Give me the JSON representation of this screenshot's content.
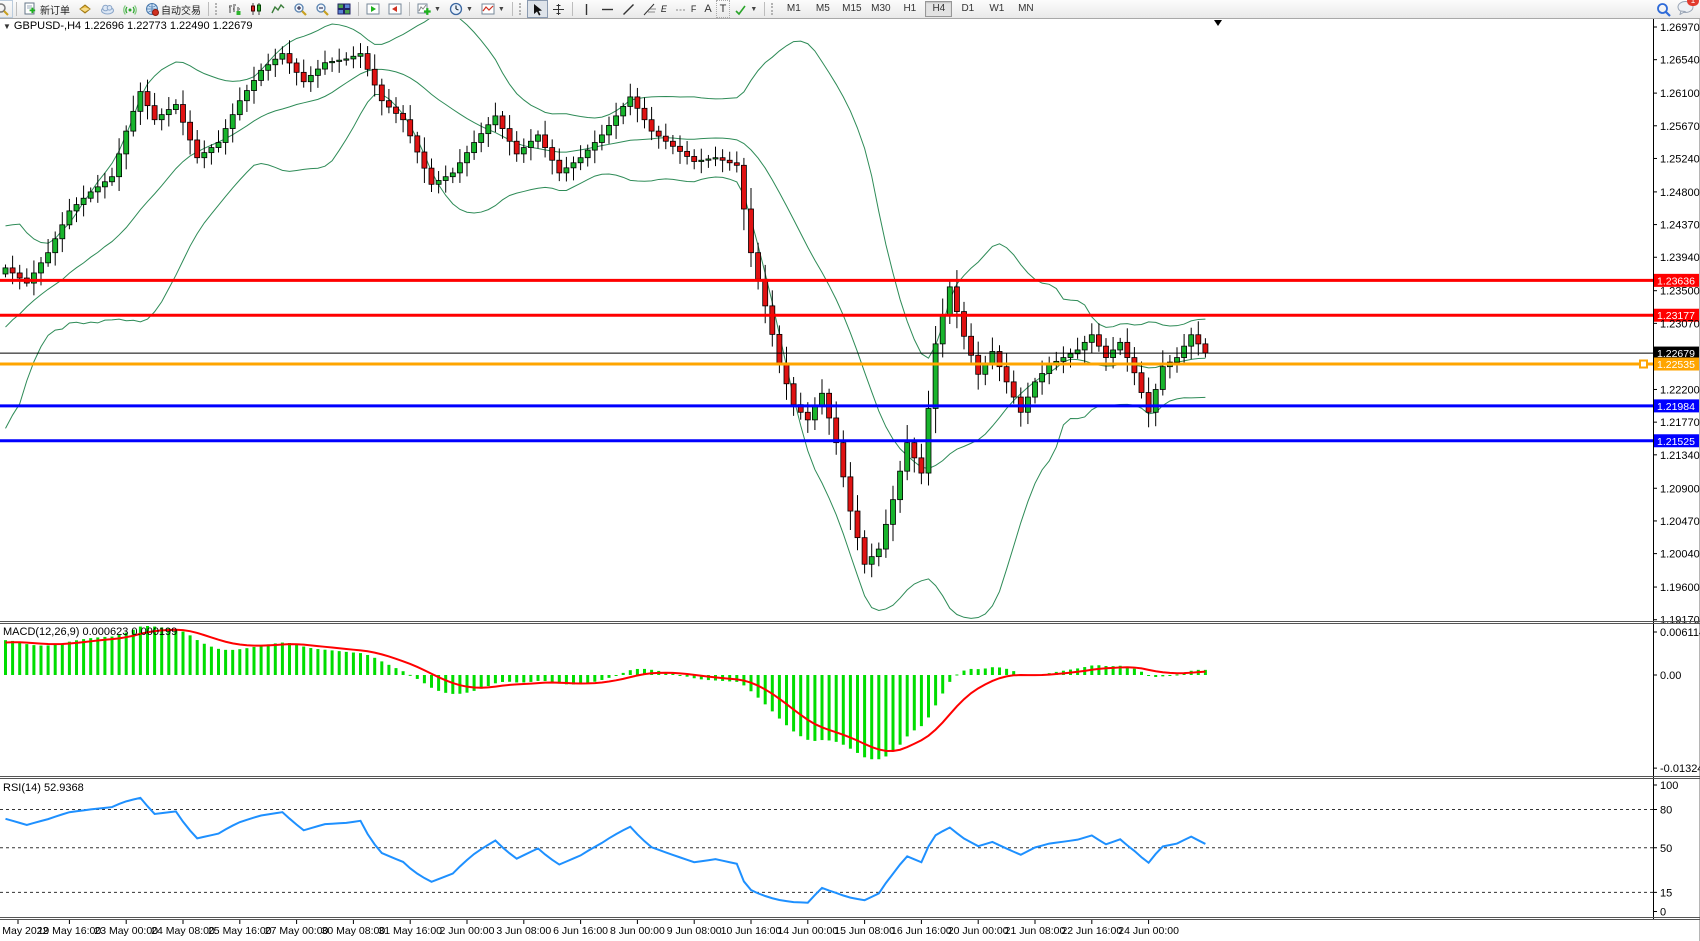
{
  "toolbar": {
    "new_order_label": "新订单",
    "autotrading_label": "自动交易",
    "fibo_label": "f",
    "fibo_sub": "E",
    "fibo2_label": "F",
    "text_tool_label": "A",
    "label_tool_label": "T",
    "timeframes": [
      "M1",
      "M5",
      "M15",
      "M30",
      "H1",
      "H4",
      "D1",
      "W1",
      "MN"
    ],
    "active_timeframe": "H4",
    "notification_count": "1"
  },
  "chart": {
    "title_full": "GBPUSD-,H4  1.22696 1.22773 1.22490 1.22679",
    "macd_label": "MACD(12,26,9) 0.000623 0.000199",
    "rsi_label": "RSI(14) 52.9368"
  },
  "chart_data": {
    "type": "candlestick",
    "symbol": "GBPUSD-",
    "timeframe": "H4",
    "ohlc_display": {
      "open": "1.22696",
      "high": "1.22773",
      "low": "1.22490",
      "close": "1.22679"
    },
    "ylim": [
      1.1917,
      1.2697
    ],
    "price_axis_ticks": [
      "1.26970",
      "1.26540",
      "1.26100",
      "1.25670",
      "1.25240",
      "1.24800",
      "1.24370",
      "1.23940",
      "1.23500",
      "1.23070",
      "1.22200",
      "1.21770",
      "1.21340",
      "1.20900",
      "1.20470",
      "1.20040",
      "1.19600",
      "1.19170"
    ],
    "time_axis_labels": [
      "18 May 2022",
      "19 May 16:00",
      "23 May 00:00",
      "24 May 08:00",
      "25 May 16:00",
      "27 May 00:00",
      "30 May 08:00",
      "31 May 16:00",
      "2 Jun 00:00",
      "3 Jun 08:00",
      "6 Jun 16:00",
      "8 Jun 00:00",
      "9 Jun 08:00",
      "10 Jun 16:00",
      "14 Jun 00:00",
      "15 Jun 08:00",
      "16 Jun 16:00",
      "20 Jun 00:00",
      "21 Jun 08:00",
      "22 Jun 16:00",
      "24 Jun 00:00"
    ],
    "hlines": [
      {
        "price": 1.23636,
        "label": "1.23636",
        "color": "#ff0000",
        "thickness": 3,
        "name": "resistance-line-1"
      },
      {
        "price": 1.23177,
        "label": "1.23177",
        "color": "#ff0000",
        "thickness": 3,
        "name": "resistance-line-2"
      },
      {
        "price": 1.22679,
        "label": "1.22679",
        "color": "#000000",
        "thickness": 1,
        "name": "current-price-line",
        "role": "current"
      },
      {
        "price": 1.22535,
        "label": "1.22535",
        "color": "#ffa500",
        "thickness": 3,
        "name": "pivot-line",
        "selected": true
      },
      {
        "price": 1.21984,
        "label": "1.21984",
        "color": "#0000ff",
        "thickness": 3,
        "name": "support-line-1"
      },
      {
        "price": 1.21525,
        "label": "1.21525",
        "color": "#0000ff",
        "thickness": 3,
        "name": "support-line-2"
      }
    ],
    "candles": {
      "count": 170,
      "up_color": "#18b42c",
      "down_color": "#e01212",
      "outline_color": "#000000",
      "close_path_anchors": [
        [
          0,
          1.238
        ],
        [
          3,
          1.236
        ],
        [
          6,
          1.24
        ],
        [
          9,
          1.2455
        ],
        [
          12,
          1.248
        ],
        [
          15,
          1.25
        ],
        [
          17,
          1.256
        ],
        [
          19,
          1.2612
        ],
        [
          21,
          1.2575
        ],
        [
          24,
          1.2595
        ],
        [
          27,
          1.2525
        ],
        [
          30,
          1.2545
        ],
        [
          33,
          1.26
        ],
        [
          36,
          1.264
        ],
        [
          39,
          1.2662
        ],
        [
          42,
          1.2625
        ],
        [
          45,
          1.265
        ],
        [
          48,
          1.2655
        ],
        [
          50,
          1.2662
        ],
        [
          53,
          1.26
        ],
        [
          56,
          1.2575
        ],
        [
          60,
          1.249
        ],
        [
          63,
          1.2505
        ],
        [
          66,
          1.2545
        ],
        [
          69,
          1.258
        ],
        [
          72,
          1.253
        ],
        [
          75,
          1.2555
        ],
        [
          78,
          1.2505
        ],
        [
          81,
          1.2525
        ],
        [
          84,
          1.2555
        ],
        [
          88,
          1.2605
        ],
        [
          91,
          1.256
        ],
        [
          94,
          1.254
        ],
        [
          97,
          1.252
        ],
        [
          100,
          1.2525
        ],
        [
          103,
          1.2515
        ],
        [
          105,
          1.24
        ],
        [
          107,
          1.233
        ],
        [
          109,
          1.2255
        ],
        [
          111,
          1.22
        ],
        [
          113,
          1.218
        ],
        [
          115,
          1.2215
        ],
        [
          117,
          1.215
        ],
        [
          119,
          1.206
        ],
        [
          121,
          1.199
        ],
        [
          123,
          1.201
        ],
        [
          125,
          1.2075
        ],
        [
          127,
          1.215
        ],
        [
          129,
          1.211
        ],
        [
          131,
          1.228
        ],
        [
          133,
          1.2355
        ],
        [
          135,
          1.229
        ],
        [
          137,
          1.224
        ],
        [
          139,
          1.227
        ],
        [
          141,
          1.223
        ],
        [
          143,
          1.219
        ],
        [
          145,
          1.223
        ],
        [
          147,
          1.2252
        ],
        [
          149,
          1.2262
        ],
        [
          151,
          1.2272
        ],
        [
          153,
          1.2292
        ],
        [
          155,
          1.2262
        ],
        [
          157,
          1.2282
        ],
        [
          159,
          1.2242
        ],
        [
          161,
          1.219
        ],
        [
          163,
          1.225
        ],
        [
          165,
          1.2262
        ],
        [
          167,
          1.2292
        ],
        [
          169,
          1.2268
        ]
      ],
      "warmup_closes": [
        1.216,
        1.2185,
        1.221,
        1.217,
        1.2205,
        1.2235,
        1.226,
        1.229,
        1.231,
        1.2285,
        1.232,
        1.2345,
        1.233,
        1.236,
        1.234,
        1.237,
        1.2355,
        1.2368,
        1.2352,
        1.2372
      ]
    },
    "bollinger": {
      "period": 20,
      "deviation": 2,
      "color": "#2e8b57"
    },
    "indicators": [
      {
        "name": "MACD",
        "params": "12,26,9",
        "values_display": [
          "0.000623",
          "0.000199"
        ],
        "axis_ticks": [
          "0.006114",
          "0.00",
          "-0.013241"
        ],
        "histogram_color": "#00dd00",
        "signal_color": "#ff0000"
      },
      {
        "name": "RSI",
        "params": "14",
        "value_display": "52.9368",
        "axis_ticks": [
          "100",
          "80",
          "50",
          "15",
          "0"
        ],
        "levels": [
          80,
          50,
          15
        ],
        "line_color": "#1e90ff"
      }
    ]
  }
}
